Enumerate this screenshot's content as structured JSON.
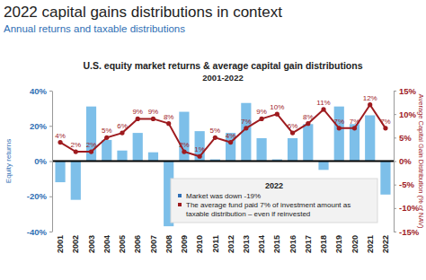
{
  "chart_data": {
    "type": "bar",
    "header": "2022 capital gains distributions in context",
    "header_subtitle": "Annual returns and taxable distributions",
    "title": "U.S. equity market returns & average capital gain distributions",
    "subtitle": "2001-2022",
    "categories": [
      "2001",
      "2002",
      "2003",
      "2004",
      "2005",
      "2006",
      "2007",
      "2008",
      "2009",
      "2010",
      "2011",
      "2012",
      "2013",
      "2014",
      "2015",
      "2016",
      "2017",
      "2018",
      "2019",
      "2020",
      "2021",
      "2022"
    ],
    "series": [
      {
        "name": "Equity returns",
        "type": "bar",
        "color": "#7dbfe9",
        "values": [
          -12,
          -22,
          31,
          12,
          6,
          16,
          5,
          -37,
          28,
          17,
          1,
          16,
          33,
          13,
          1,
          13,
          21,
          -5,
          31,
          21,
          26,
          -19
        ]
      },
      {
        "name": "Average Capital Gain Distribution (% of NAV)",
        "type": "line",
        "axis": "y2",
        "color": "#9e1b1f",
        "marker": "circle",
        "data_labels": true,
        "values": [
          4,
          2,
          2,
          5,
          6,
          9,
          9,
          8,
          2,
          1,
          5,
          4,
          7,
          9,
          10,
          6,
          8,
          11,
          7,
          7,
          12,
          7
        ],
        "value_labels": [
          "4%",
          "2%",
          "2%",
          "5%",
          "6%",
          "9%",
          "9%",
          "8%",
          "2%",
          "1%",
          "5%",
          "4%",
          "7%",
          "9%",
          "10%",
          "6%",
          "8%",
          "11%",
          "7%",
          "7%",
          "12%",
          "7%"
        ]
      }
    ],
    "ylim": [
      -40,
      40
    ],
    "yticks": [
      {
        "value": -40,
        "label": "-40%"
      },
      {
        "value": -20,
        "label": "-20%"
      },
      {
        "value": 0,
        "label": "0%"
      },
      {
        "value": 20,
        "label": "20%"
      },
      {
        "value": 40,
        "label": "40%"
      }
    ],
    "y2lim": [
      -15,
      15
    ],
    "y2ticks": [
      {
        "value": -15,
        "label": "-15%"
      },
      {
        "value": -10,
        "label": "-10%"
      },
      {
        "value": -5,
        "label": "-5%"
      },
      {
        "value": 0,
        "label": "0%"
      },
      {
        "value": 5,
        "label": "5%"
      },
      {
        "value": 10,
        "label": "10%"
      },
      {
        "value": 15,
        "label": "15%"
      }
    ],
    "grid": false,
    "annotation": {
      "title": "2022",
      "items": [
        "Market was down -19%",
        "The average fund paid 7% of investment amount as taxable distribution – even if reinvested"
      ]
    }
  }
}
